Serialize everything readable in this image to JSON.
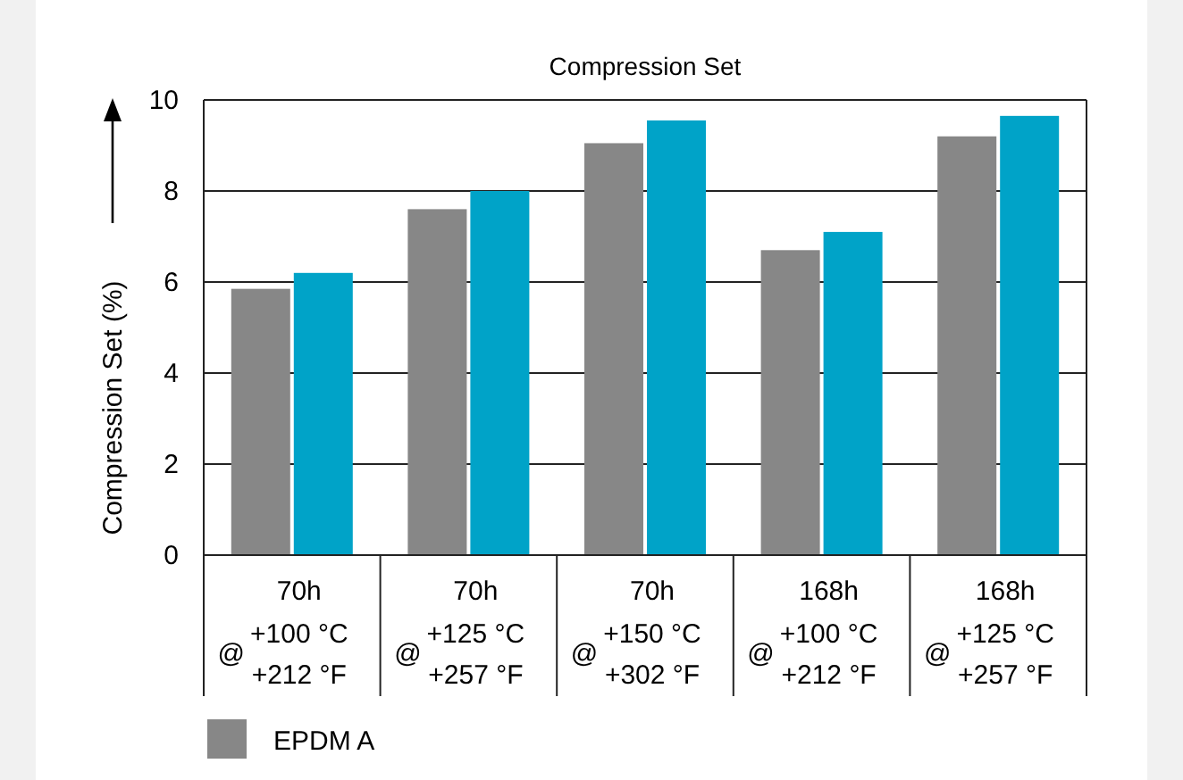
{
  "chart_data": {
    "type": "bar",
    "title": "Compression Set",
    "ylabel": "Compression Set (%)",
    "categories": [
      "70h\n@\n+100 °C\n+212 °F",
      "70h\n@\n+125 °C\n+257 °F",
      "70h\n@\n+150 °C\n+302 °F",
      "168h\n@\n+100 °C\n+212 °F",
      "168h\n@\n+125 °C\n+257 °F"
    ],
    "series": [
      {
        "name": "EPDM A",
        "color": "#878787",
        "values": [
          5.85,
          7.6,
          9.05,
          6.7,
          9.2
        ]
      },
      {
        "color": "#00a3c8",
        "values": [
          6.2,
          8.0,
          9.55,
          7.1,
          9.65
        ]
      }
    ],
    "ylim": [
      0,
      10
    ],
    "yticks": [
      0,
      2,
      4,
      6,
      8,
      10
    ],
    "grid": "y",
    "legend": "bottom"
  }
}
